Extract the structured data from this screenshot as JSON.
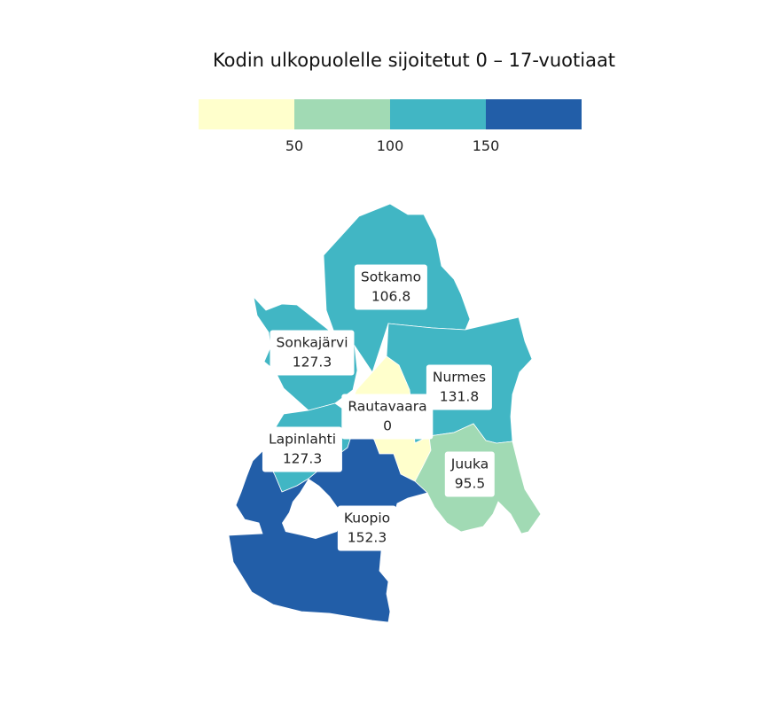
{
  "title": "Kodin ulkopuolelle sijoitetut 0 – 17-vuotiaat",
  "legend": {
    "colors": [
      "#ffffcc",
      "#a1dab4",
      "#41b6c4",
      "#225ea8"
    ],
    "ticks": [
      "50",
      "100",
      "150"
    ]
  },
  "regions": [
    {
      "name": "Sotkamo",
      "value": "106.8",
      "color": "#41b6c4"
    },
    {
      "name": "Sonkajärvi",
      "value": "127.3",
      "color": "#41b6c4"
    },
    {
      "name": "Nurmes",
      "value": "131.8",
      "color": "#41b6c4"
    },
    {
      "name": "Rautavaara",
      "value": "0",
      "color": "#ffffcc"
    },
    {
      "name": "Lapinlahti",
      "value": "127.3",
      "color": "#41b6c4"
    },
    {
      "name": "Juuka",
      "value": "95.5",
      "color": "#a1dab4"
    },
    {
      "name": "Kuopio",
      "value": "152.3",
      "color": "#225ea8"
    }
  ]
}
